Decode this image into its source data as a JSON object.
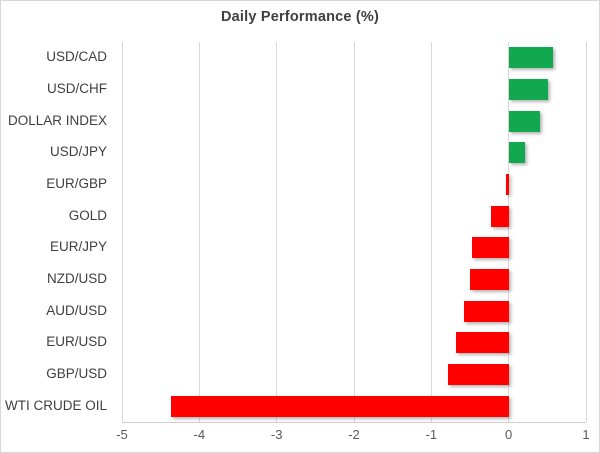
{
  "chart_data": {
    "type": "bar",
    "orientation": "horizontal",
    "title": "Daily Performance (%)",
    "categories": [
      "USD/CAD",
      "USD/CHF",
      "DOLLAR INDEX",
      "USD/JPY",
      "EUR/GBP",
      "GOLD",
      "EUR/JPY",
      "NZD/USD",
      "AUD/USD",
      "EUR/USD",
      "GBP/USD",
      "WTI CRUDE OIL"
    ],
    "values": [
      0.57,
      0.51,
      0.4,
      0.21,
      -0.04,
      -0.23,
      -0.48,
      -0.5,
      -0.58,
      -0.68,
      -0.79,
      -4.36
    ],
    "xlim": [
      -5,
      1
    ],
    "x_ticks": [
      -5,
      -4,
      -3,
      -2,
      -1,
      0,
      1
    ],
    "grid": true,
    "legend": "none",
    "positive_color": "#11a84f",
    "negative_color": "#fe0000",
    "gridline_color": "#d9d9d9",
    "axis_line_color": "#cfcfcf",
    "title_color": "#3f3f3f",
    "category_label_color": "#3f3f3f",
    "tick_label_color": "#595959"
  }
}
